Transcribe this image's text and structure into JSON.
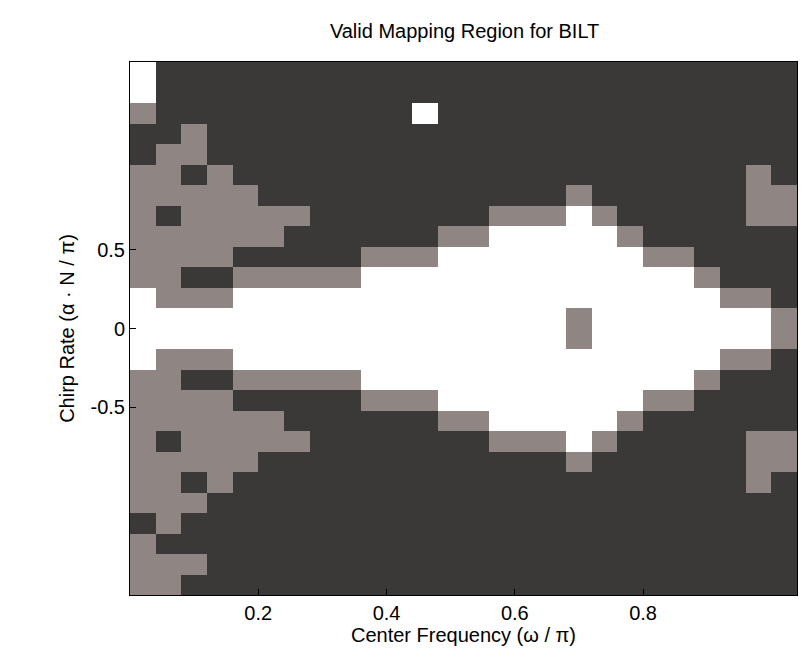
{
  "chart_data": {
    "type": "heatmap",
    "title": "Valid Mapping Region for BILT",
    "x_label": "Center Frequency (ω / π)",
    "y_label": "Chirp Rate (α · N / π)",
    "xlim": [
      0,
      1.04
    ],
    "ylim": [
      -1.69,
      1.69
    ],
    "xticks": [
      0.2,
      0.4,
      0.6,
      0.8
    ],
    "yticks": [
      -0.5,
      0,
      0.5
    ],
    "grid": false,
    "colors": [
      "#ffffff",
      "#8f8683",
      "#3b3838"
    ],
    "x": [
      0.02,
      0.06,
      0.1,
      0.14,
      0.18,
      0.22,
      0.26,
      0.3,
      0.34,
      0.38,
      0.42,
      0.46,
      0.5,
      0.54,
      0.58,
      0.62,
      0.66,
      0.7,
      0.74,
      0.78,
      0.82,
      0.86,
      0.9,
      0.94,
      0.98,
      1.02
    ],
    "y": [
      -1.625,
      -1.495,
      -1.365,
      -1.235,
      -1.105,
      -0.975,
      -0.845,
      -0.715,
      -0.585,
      -0.455,
      -0.325,
      -0.195,
      -0.065,
      0.065,
      0.195,
      0.325,
      0.455,
      0.585,
      0.715,
      0.845,
      0.975,
      1.105,
      1.235,
      1.365,
      1.495,
      1.625
    ],
    "cells": [
      [
        1,
        1,
        2,
        2,
        2,
        2,
        2,
        2,
        2,
        2,
        2,
        2,
        2,
        2,
        2,
        2,
        2,
        2,
        2,
        2,
        2,
        2,
        2,
        2,
        2,
        2
      ],
      [
        1,
        1,
        1,
        2,
        2,
        2,
        2,
        2,
        2,
        2,
        2,
        2,
        2,
        2,
        2,
        2,
        2,
        2,
        2,
        2,
        2,
        2,
        2,
        2,
        2,
        2
      ],
      [
        1,
        2,
        2,
        2,
        2,
        2,
        2,
        2,
        2,
        2,
        2,
        2,
        2,
        2,
        2,
        2,
        2,
        2,
        2,
        2,
        2,
        2,
        2,
        2,
        2,
        2
      ],
      [
        2,
        1,
        2,
        2,
        2,
        2,
        2,
        2,
        2,
        2,
        2,
        2,
        2,
        2,
        2,
        2,
        2,
        2,
        2,
        2,
        2,
        2,
        2,
        2,
        2,
        2
      ],
      [
        1,
        1,
        1,
        2,
        2,
        2,
        2,
        2,
        2,
        2,
        2,
        2,
        2,
        2,
        2,
        2,
        2,
        2,
        2,
        2,
        2,
        2,
        2,
        2,
        2,
        2
      ],
      [
        1,
        1,
        2,
        1,
        2,
        2,
        2,
        2,
        2,
        2,
        2,
        2,
        2,
        2,
        2,
        2,
        2,
        2,
        2,
        2,
        2,
        2,
        2,
        2,
        1,
        2
      ],
      [
        1,
        1,
        1,
        1,
        1,
        2,
        2,
        2,
        2,
        2,
        2,
        2,
        2,
        2,
        2,
        2,
        2,
        1,
        2,
        2,
        2,
        2,
        2,
        2,
        1,
        1
      ],
      [
        1,
        2,
        1,
        1,
        1,
        1,
        1,
        2,
        2,
        2,
        2,
        2,
        2,
        2,
        1,
        1,
        1,
        0,
        1,
        2,
        2,
        2,
        2,
        2,
        1,
        1
      ],
      [
        1,
        1,
        1,
        1,
        1,
        1,
        2,
        2,
        2,
        2,
        2,
        2,
        1,
        1,
        0,
        0,
        0,
        0,
        0,
        1,
        2,
        2,
        2,
        2,
        2,
        2
      ],
      [
        1,
        1,
        1,
        1,
        2,
        2,
        2,
        2,
        2,
        1,
        1,
        1,
        0,
        0,
        0,
        0,
        0,
        0,
        0,
        0,
        1,
        1,
        2,
        2,
        2,
        2
      ],
      [
        1,
        1,
        2,
        2,
        1,
        1,
        1,
        1,
        1,
        0,
        0,
        0,
        0,
        0,
        0,
        0,
        0,
        0,
        0,
        0,
        0,
        0,
        1,
        2,
        2,
        2
      ],
      [
        0,
        1,
        1,
        1,
        0,
        0,
        0,
        0,
        0,
        0,
        0,
        0,
        0,
        0,
        0,
        0,
        0,
        0,
        0,
        0,
        0,
        0,
        0,
        1,
        1,
        2
      ],
      [
        0,
        0,
        0,
        0,
        0,
        0,
        0,
        0,
        0,
        0,
        0,
        0,
        0,
        0,
        0,
        0,
        0,
        1,
        0,
        0,
        0,
        0,
        0,
        0,
        0,
        1
      ],
      [
        0,
        0,
        0,
        0,
        0,
        0,
        0,
        0,
        0,
        0,
        0,
        0,
        0,
        0,
        0,
        0,
        0,
        1,
        0,
        0,
        0,
        0,
        0,
        0,
        0,
        1
      ],
      [
        0,
        1,
        1,
        1,
        0,
        0,
        0,
        0,
        0,
        0,
        0,
        0,
        0,
        0,
        0,
        0,
        0,
        0,
        0,
        0,
        0,
        0,
        0,
        1,
        1,
        2
      ],
      [
        1,
        1,
        2,
        2,
        1,
        1,
        1,
        1,
        1,
        0,
        0,
        0,
        0,
        0,
        0,
        0,
        0,
        0,
        0,
        0,
        0,
        0,
        1,
        2,
        2,
        2
      ],
      [
        1,
        1,
        1,
        1,
        2,
        2,
        2,
        2,
        2,
        1,
        1,
        1,
        0,
        0,
        0,
        0,
        0,
        0,
        0,
        0,
        1,
        1,
        2,
        2,
        2,
        2
      ],
      [
        1,
        1,
        1,
        1,
        1,
        1,
        2,
        2,
        2,
        2,
        2,
        2,
        1,
        1,
        0,
        0,
        0,
        0,
        0,
        1,
        2,
        2,
        2,
        2,
        2,
        2
      ],
      [
        1,
        2,
        1,
        1,
        1,
        1,
        1,
        2,
        2,
        2,
        2,
        2,
        2,
        2,
        1,
        1,
        1,
        0,
        1,
        2,
        2,
        2,
        2,
        2,
        1,
        1
      ],
      [
        1,
        1,
        1,
        1,
        1,
        2,
        2,
        2,
        2,
        2,
        2,
        2,
        2,
        2,
        2,
        2,
        2,
        1,
        2,
        2,
        2,
        2,
        2,
        2,
        1,
        1
      ],
      [
        1,
        1,
        2,
        1,
        2,
        2,
        2,
        2,
        2,
        2,
        2,
        2,
        2,
        2,
        2,
        2,
        2,
        2,
        2,
        2,
        2,
        2,
        2,
        2,
        1,
        2
      ],
      [
        2,
        1,
        1,
        2,
        2,
        2,
        2,
        2,
        2,
        2,
        2,
        2,
        2,
        2,
        2,
        2,
        2,
        2,
        2,
        2,
        2,
        2,
        2,
        2,
        2,
        2
      ],
      [
        2,
        2,
        1,
        2,
        2,
        2,
        2,
        2,
        2,
        2,
        2,
        2,
        2,
        2,
        2,
        2,
        2,
        2,
        2,
        2,
        2,
        2,
        2,
        2,
        2,
        2
      ],
      [
        1,
        2,
        2,
        2,
        2,
        2,
        2,
        2,
        2,
        2,
        2,
        0,
        2,
        2,
        2,
        2,
        2,
        2,
        2,
        2,
        2,
        2,
        2,
        2,
        2,
        2
      ],
      [
        0,
        2,
        2,
        2,
        2,
        2,
        2,
        2,
        2,
        2,
        2,
        2,
        2,
        2,
        2,
        2,
        2,
        2,
        2,
        2,
        2,
        2,
        2,
        2,
        2,
        2
      ],
      [
        0,
        2,
        2,
        2,
        2,
        2,
        2,
        2,
        2,
        2,
        2,
        2,
        2,
        2,
        2,
        2,
        2,
        2,
        2,
        2,
        2,
        2,
        2,
        2,
        2,
        2
      ]
    ]
  }
}
